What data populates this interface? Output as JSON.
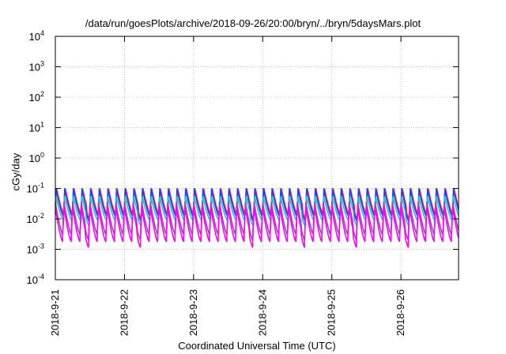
{
  "chart_data": {
    "type": "line",
    "title": "/data/run/goesPlots/archive/2018-09-26/20:00/bryn/../bryn/5daysMars.plot",
    "xlabel": "Coordinated Universal Time (UTC)",
    "ylabel": "cGy/day",
    "yscale": "log",
    "ylim": [
      0.0001,
      10000
    ],
    "y_ticks": [
      {
        "base": "10",
        "exp": "-4",
        "value": 0.0001
      },
      {
        "base": "10",
        "exp": "-3",
        "value": 0.001
      },
      {
        "base": "10",
        "exp": "-2",
        "value": 0.01
      },
      {
        "base": "10",
        "exp": "-1",
        "value": 0.1
      },
      {
        "base": "10",
        "exp": "0",
        "value": 1
      },
      {
        "base": "10",
        "exp": "1",
        "value": 10
      },
      {
        "base": "10",
        "exp": "2",
        "value": 100
      },
      {
        "base": "10",
        "exp": "3",
        "value": 1000
      },
      {
        "base": "10",
        "exp": "4",
        "value": 10000
      }
    ],
    "xlim": [
      "2018-09-21",
      "2018-09-26 20:00"
    ],
    "x_tick_labels": [
      "2018-9-21",
      "2018-9-22",
      "2018-9-23",
      "2018-9-24",
      "2018-9-25",
      "2018-9-26"
    ],
    "grid": true,
    "pattern": {
      "description_of_data": "Sawtooth dose-rate curves, roughly 8 cycles per day",
      "cycles_per_day": 8,
      "series": [
        {
          "color": "#ff2020",
          "peak": 0.11,
          "trough": 0.014
        },
        {
          "color": "#2040ff",
          "peak": 0.1,
          "trough": 0.012
        },
        {
          "color": "#20c0d0",
          "peak": 0.06,
          "trough": 0.009
        },
        {
          "color": "#a040c0",
          "peak": 0.035,
          "trough": 0.003
        },
        {
          "color": "#ff00ff",
          "peak": 0.028,
          "trough": 0.0018
        }
      ]
    }
  }
}
